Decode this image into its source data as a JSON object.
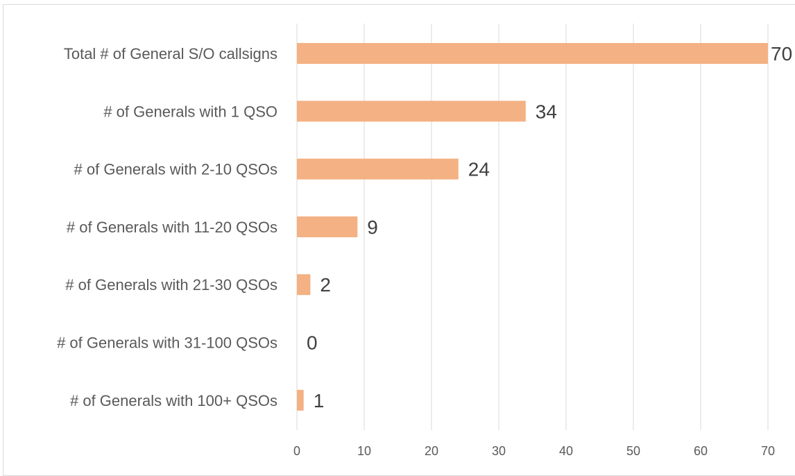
{
  "chart_data": {
    "type": "bar",
    "orientation": "horizontal",
    "categories": [
      "Total # of General S/O callsigns",
      "# of Generals with 1 QSO",
      "# of Generals with 2-10 QSOs",
      "# of Generals with 11-20 QSOs",
      "# of Generals with 21-30 QSOs",
      "# of Generals with 31-100 QSOs",
      "# of Generals with 100+ QSOs"
    ],
    "values": [
      70,
      34,
      24,
      9,
      2,
      0,
      1
    ],
    "data_labels": [
      "70",
      "34",
      "24",
      "9",
      "2",
      "0",
      "1"
    ],
    "xlim": [
      0,
      70
    ],
    "xticks": [
      0,
      10,
      20,
      30,
      40,
      50,
      60,
      70
    ],
    "xtick_labels": [
      "0",
      "10",
      "20",
      "30",
      "40",
      "50",
      "60",
      "70"
    ],
    "grid": true,
    "legend": "none",
    "title": "",
    "xlabel": "",
    "ylabel": "",
    "colors": {
      "bar": "#F4B183",
      "grid": "#D9D9D9",
      "text": "#595959",
      "data_label": "#404040"
    }
  }
}
